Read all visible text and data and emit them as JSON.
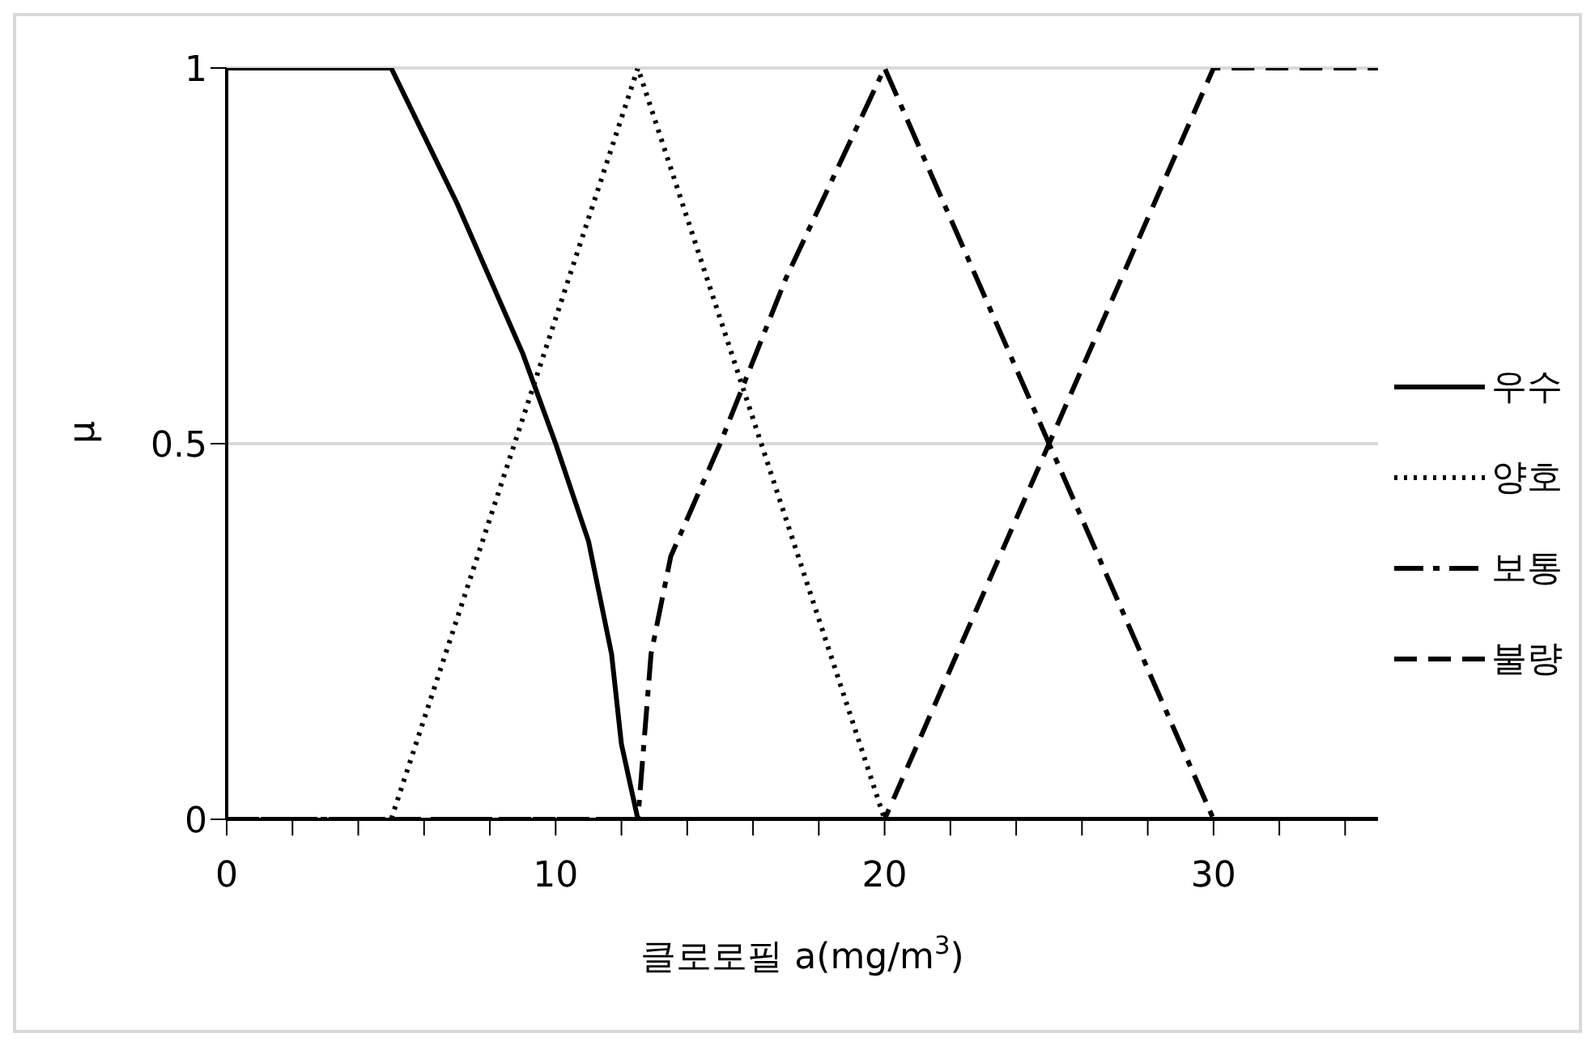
{
  "chart_data": {
    "type": "line",
    "xlabel": "클로로필 a(mg/m$^{3}$)",
    "ylabel": "μ",
    "xlim": [
      0,
      35
    ],
    "ylim": [
      0,
      1
    ],
    "xticks": [
      0,
      {
        "value": 2,
        "label": null
      },
      {
        "value": 4,
        "label": null
      },
      {
        "value": 6,
        "label": null
      },
      {
        "value": 8,
        "label": null
      },
      10,
      {
        "value": 12,
        "label": null
      },
      {
        "value": 14,
        "label": null
      },
      {
        "value": 16,
        "label": null
      },
      {
        "value": 18,
        "label": null
      },
      20,
      {
        "value": 22,
        "label": null
      },
      {
        "value": 24,
        "label": null
      },
      {
        "value": 26,
        "label": null
      },
      {
        "value": 28,
        "label": null
      },
      30,
      {
        "value": 32,
        "label": null
      },
      {
        "value": 34,
        "label": null
      }
    ],
    "yticks": [
      0,
      0.5,
      1
    ],
    "grid": "y",
    "legend": "right",
    "marker": "none",
    "series": [
      {
        "name": "우수",
        "color": "#000000",
        "line_style": "solid",
        "x": [
          0,
          5,
          7,
          9,
          10,
          11,
          11.7,
          12,
          12.5,
          35
        ],
        "values": [
          1,
          1,
          0.82,
          0.62,
          0.5,
          0.37,
          0.22,
          0.1,
          0,
          0
        ]
      },
      {
        "name": "양호",
        "color": "#000000",
        "line_style": "dotted",
        "x": [
          0,
          5,
          12.5,
          20,
          35
        ],
        "values": [
          0,
          0,
          1,
          0,
          0
        ]
      },
      {
        "name": "보통",
        "color": "#000000",
        "line_style": "dashdot",
        "x": [
          0,
          12.5,
          12.9,
          13.5,
          15,
          17,
          20,
          30,
          35
        ],
        "values": [
          0,
          0,
          0.22,
          0.35,
          0.5,
          0.72,
          1,
          0,
          0
        ]
      },
      {
        "name": "불량",
        "color": "#000000",
        "line_style": "dashed",
        "x": [
          0,
          20,
          30,
          35
        ],
        "values": [
          0,
          0,
          1,
          1
        ]
      }
    ]
  }
}
